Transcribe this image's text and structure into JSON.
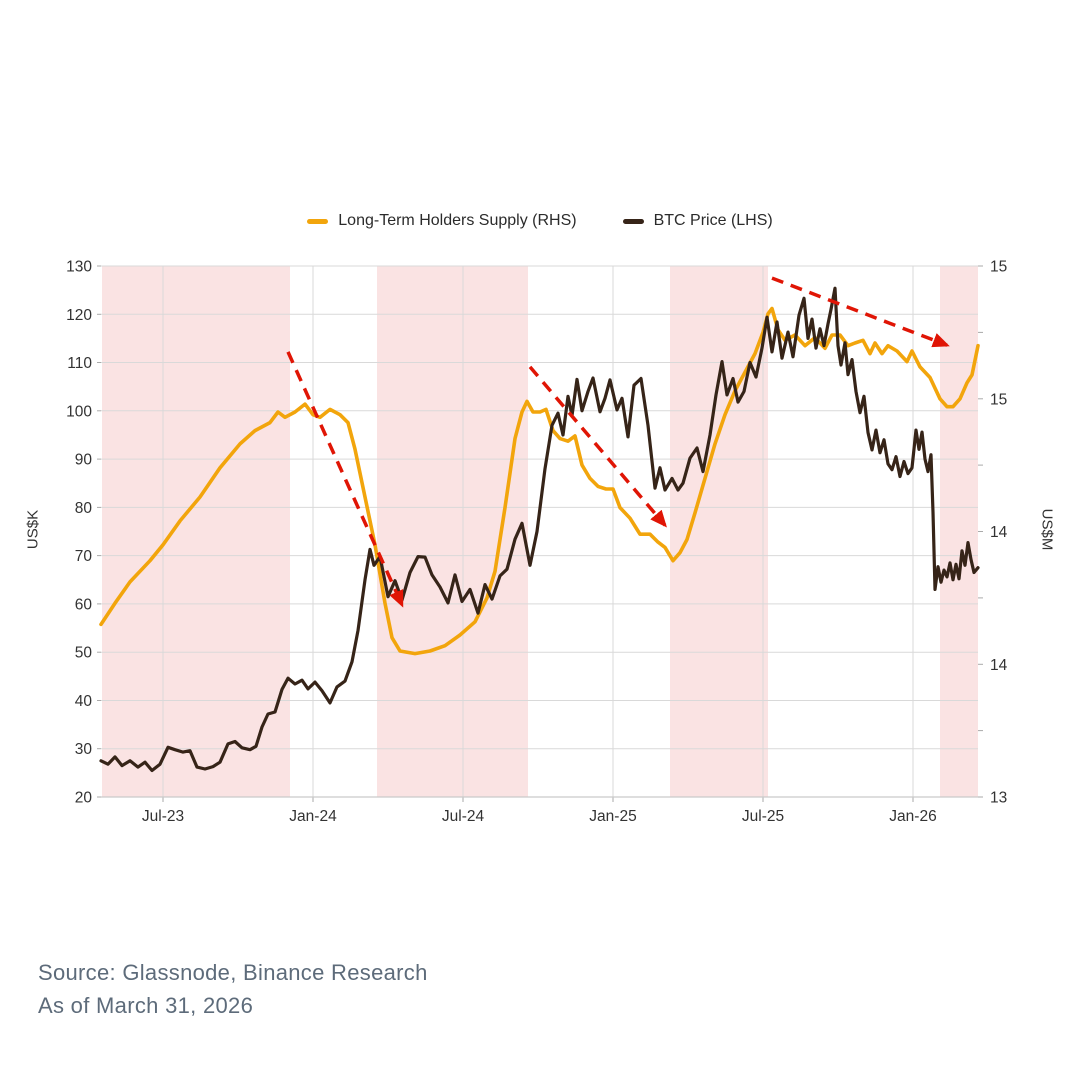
{
  "legend": {
    "items": [
      {
        "label": "Long-Term Holders Supply (RHS)",
        "color": "#F2A50C"
      },
      {
        "label": "BTC Price (LHS)",
        "color": "#362418"
      }
    ]
  },
  "axes": {
    "left": {
      "title": "US$K",
      "ticks": [
        130,
        120,
        110,
        100,
        90,
        80,
        70,
        60,
        50,
        40,
        30,
        20
      ]
    },
    "right": {
      "title": "US$M",
      "ticks": [
        {
          "value": 15.0,
          "label": "15"
        },
        {
          "value": 14.5,
          "label": "15"
        },
        {
          "value": 14.0,
          "label": "14"
        },
        {
          "value": 13.5,
          "label": "14"
        },
        {
          "value": 13.0,
          "label": "13"
        }
      ]
    },
    "x": {
      "ticks": [
        {
          "t": 6,
          "label": "Jul-23"
        },
        {
          "t": 12,
          "label": "Jan-24"
        },
        {
          "t": 18,
          "label": "Jul-24"
        },
        {
          "t": 24,
          "label": "Jan-25"
        },
        {
          "t": 30,
          "label": "Jul-25"
        },
        {
          "t": 36,
          "label": "Jan-26"
        }
      ]
    }
  },
  "source": {
    "line1": "Source: Glassnode, Binance Research",
    "line2": "As of March 31, 2026"
  },
  "chart_data": {
    "type": "line",
    "title": "",
    "x_unit": "months since Jan-2023 (6 = Jul-23, 12 = Jan-24, ...)",
    "x_range": [
      3.52,
      38.6
    ],
    "left_ylim": [
      20,
      130
    ],
    "right_ylim": [
      13,
      15
    ],
    "grid": true,
    "legend_position": "top-center",
    "band_color": "#FAE3E3",
    "grid_color": "#D9D9D9",
    "axis_color": "#C9C9C9",
    "tick_color": "#AAAAAA",
    "arrow_color": "#E01505",
    "shaded_regions": [
      [
        3.56,
        11.08
      ],
      [
        14.56,
        20.6
      ],
      [
        26.28,
        30.2
      ],
      [
        37.08,
        38.6
      ]
    ],
    "arrows": [
      {
        "from": [
          11.0,
          112.2
        ],
        "to": [
          15.56,
          59.8
        ],
        "y_axis": "left"
      },
      {
        "from": [
          20.68,
          109.1
        ],
        "to": [
          26.08,
          76.3
        ],
        "y_axis": "left"
      },
      {
        "from": [
          30.36,
          127.5
        ],
        "to": [
          37.36,
          113.6
        ],
        "y_axis": "left"
      }
    ],
    "series": [
      {
        "name": "Long-Term Holders Supply (RHS)",
        "id": "lth-supply-line",
        "axis": "right",
        "color": "#F2A50C",
        "stroke_width": 3.6,
        "points": [
          [
            3.52,
            13.65
          ],
          [
            4.08,
            13.73
          ],
          [
            4.68,
            13.81
          ],
          [
            5.48,
            13.89
          ],
          [
            6.0,
            13.95
          ],
          [
            6.68,
            14.04
          ],
          [
            7.48,
            14.13
          ],
          [
            8.28,
            14.24
          ],
          [
            9.08,
            14.33
          ],
          [
            9.68,
            14.38
          ],
          [
            10.28,
            14.41
          ],
          [
            10.6,
            14.45
          ],
          [
            10.88,
            14.43
          ],
          [
            11.28,
            14.45
          ],
          [
            11.68,
            14.48
          ],
          [
            12.0,
            14.44
          ],
          [
            12.28,
            14.43
          ],
          [
            12.68,
            14.46
          ],
          [
            13.08,
            14.44
          ],
          [
            13.4,
            14.41
          ],
          [
            13.68,
            14.31
          ],
          [
            14.08,
            14.13
          ],
          [
            14.48,
            13.95
          ],
          [
            14.88,
            13.73
          ],
          [
            15.16,
            13.6
          ],
          [
            15.48,
            13.55
          ],
          [
            16.08,
            13.54
          ],
          [
            16.68,
            13.55
          ],
          [
            17.28,
            13.57
          ],
          [
            17.88,
            13.61
          ],
          [
            18.48,
            13.66
          ],
          [
            18.96,
            13.75
          ],
          [
            19.28,
            13.85
          ],
          [
            19.68,
            14.09
          ],
          [
            20.08,
            14.35
          ],
          [
            20.36,
            14.45
          ],
          [
            20.56,
            14.49
          ],
          [
            20.8,
            14.45
          ],
          [
            21.08,
            14.45
          ],
          [
            21.32,
            14.46
          ],
          [
            21.6,
            14.38
          ],
          [
            21.88,
            14.35
          ],
          [
            22.2,
            14.34
          ],
          [
            22.48,
            14.36
          ],
          [
            22.76,
            14.25
          ],
          [
            23.08,
            14.2
          ],
          [
            23.4,
            14.17
          ],
          [
            23.72,
            14.16
          ],
          [
            24.0,
            14.16
          ],
          [
            24.28,
            14.09
          ],
          [
            24.68,
            14.05
          ],
          [
            25.08,
            13.99
          ],
          [
            25.48,
            13.99
          ],
          [
            25.8,
            13.96
          ],
          [
            26.08,
            13.94
          ],
          [
            26.4,
            13.89
          ],
          [
            26.68,
            13.92
          ],
          [
            26.96,
            13.97
          ],
          [
            27.28,
            14.07
          ],
          [
            27.68,
            14.2
          ],
          [
            28.08,
            14.33
          ],
          [
            28.48,
            14.44
          ],
          [
            28.88,
            14.53
          ],
          [
            29.28,
            14.6
          ],
          [
            29.68,
            14.67
          ],
          [
            30.0,
            14.75
          ],
          [
            30.2,
            14.82
          ],
          [
            30.36,
            14.84
          ],
          [
            30.6,
            14.76
          ],
          [
            30.88,
            14.72
          ],
          [
            31.28,
            14.74
          ],
          [
            31.68,
            14.7
          ],
          [
            32.08,
            14.73
          ],
          [
            32.48,
            14.69
          ],
          [
            32.76,
            14.74
          ],
          [
            33.08,
            14.74
          ],
          [
            33.4,
            14.7
          ],
          [
            33.68,
            14.71
          ],
          [
            34.0,
            14.72
          ],
          [
            34.28,
            14.67
          ],
          [
            34.48,
            14.71
          ],
          [
            34.76,
            14.67
          ],
          [
            35.0,
            14.7
          ],
          [
            35.36,
            14.68
          ],
          [
            35.76,
            14.64
          ],
          [
            35.96,
            14.68
          ],
          [
            36.28,
            14.62
          ],
          [
            36.68,
            14.58
          ],
          [
            37.08,
            14.5
          ],
          [
            37.36,
            14.47
          ],
          [
            37.6,
            14.47
          ],
          [
            37.88,
            14.5
          ],
          [
            38.16,
            14.56
          ],
          [
            38.36,
            14.59
          ],
          [
            38.6,
            14.7
          ]
        ]
      },
      {
        "name": "BTC Price (LHS)",
        "id": "btc-price-line",
        "axis": "left",
        "color": "#362418",
        "stroke_width": 3.2,
        "points": [
          [
            3.52,
            27.5
          ],
          [
            3.8,
            26.8
          ],
          [
            4.08,
            28.3
          ],
          [
            4.36,
            26.5
          ],
          [
            4.68,
            27.5
          ],
          [
            5.0,
            26.2
          ],
          [
            5.28,
            27.2
          ],
          [
            5.56,
            25.5
          ],
          [
            5.88,
            26.8
          ],
          [
            6.2,
            30.3
          ],
          [
            6.48,
            29.8
          ],
          [
            6.8,
            29.3
          ],
          [
            7.08,
            29.6
          ],
          [
            7.36,
            26.2
          ],
          [
            7.68,
            25.8
          ],
          [
            8.0,
            26.3
          ],
          [
            8.28,
            27.2
          ],
          [
            8.6,
            31.0
          ],
          [
            8.88,
            31.5
          ],
          [
            9.16,
            30.2
          ],
          [
            9.48,
            29.8
          ],
          [
            9.72,
            30.5
          ],
          [
            9.96,
            34.5
          ],
          [
            10.2,
            37.2
          ],
          [
            10.48,
            37.6
          ],
          [
            10.76,
            42.3
          ],
          [
            11.0,
            44.6
          ],
          [
            11.28,
            43.4
          ],
          [
            11.56,
            44.2
          ],
          [
            11.8,
            42.4
          ],
          [
            12.08,
            43.8
          ],
          [
            12.36,
            42.0
          ],
          [
            12.68,
            39.5
          ],
          [
            12.96,
            42.8
          ],
          [
            13.28,
            44.0
          ],
          [
            13.56,
            48.0
          ],
          [
            13.8,
            54.5
          ],
          [
            14.08,
            65.0
          ],
          [
            14.28,
            71.3
          ],
          [
            14.44,
            68.0
          ],
          [
            14.68,
            69.8
          ],
          [
            15.0,
            61.5
          ],
          [
            15.28,
            64.8
          ],
          [
            15.56,
            60.8
          ],
          [
            15.88,
            66.5
          ],
          [
            16.2,
            69.8
          ],
          [
            16.48,
            69.7
          ],
          [
            16.76,
            66.0
          ],
          [
            17.08,
            63.5
          ],
          [
            17.4,
            60.2
          ],
          [
            17.68,
            66.0
          ],
          [
            17.96,
            60.5
          ],
          [
            18.28,
            63.0
          ],
          [
            18.6,
            58.1
          ],
          [
            18.88,
            64.0
          ],
          [
            19.16,
            61.0
          ],
          [
            19.48,
            65.8
          ],
          [
            19.76,
            67.2
          ],
          [
            20.08,
            73.4
          ],
          [
            20.36,
            76.7
          ],
          [
            20.68,
            68.0
          ],
          [
            20.96,
            75.0
          ],
          [
            21.28,
            88.0
          ],
          [
            21.56,
            97.0
          ],
          [
            21.8,
            99.5
          ],
          [
            22.0,
            95.0
          ],
          [
            22.2,
            103.0
          ],
          [
            22.36,
            99.0
          ],
          [
            22.56,
            106.5
          ],
          [
            22.76,
            100.0
          ],
          [
            23.0,
            104.0
          ],
          [
            23.2,
            106.8
          ],
          [
            23.48,
            99.8
          ],
          [
            23.68,
            102.6
          ],
          [
            23.88,
            106.4
          ],
          [
            24.16,
            100.2
          ],
          [
            24.36,
            102.6
          ],
          [
            24.6,
            94.6
          ],
          [
            24.84,
            105.3
          ],
          [
            25.12,
            106.7
          ],
          [
            25.4,
            97.0
          ],
          [
            25.68,
            84.0
          ],
          [
            25.88,
            88.2
          ],
          [
            26.08,
            83.6
          ],
          [
            26.36,
            86.0
          ],
          [
            26.6,
            83.6
          ],
          [
            26.8,
            85.0
          ],
          [
            27.08,
            90.2
          ],
          [
            27.36,
            92.3
          ],
          [
            27.6,
            87.4
          ],
          [
            27.88,
            95.0
          ],
          [
            28.12,
            103.3
          ],
          [
            28.36,
            110.2
          ],
          [
            28.56,
            103.3
          ],
          [
            28.8,
            106.7
          ],
          [
            29.0,
            101.8
          ],
          [
            29.24,
            104.0
          ],
          [
            29.48,
            110.0
          ],
          [
            29.72,
            107.0
          ],
          [
            29.96,
            113.0
          ],
          [
            30.16,
            119.4
          ],
          [
            30.36,
            112.2
          ],
          [
            30.56,
            118.4
          ],
          [
            30.76,
            110.9
          ],
          [
            31.0,
            116.3
          ],
          [
            31.2,
            111.2
          ],
          [
            31.44,
            119.8
          ],
          [
            31.64,
            123.3
          ],
          [
            31.8,
            115.0
          ],
          [
            31.96,
            119.0
          ],
          [
            32.12,
            113.0
          ],
          [
            32.28,
            117.0
          ],
          [
            32.44,
            113.5
          ],
          [
            32.6,
            118.0
          ],
          [
            32.72,
            121.0
          ],
          [
            32.88,
            125.4
          ],
          [
            33.0,
            113.5
          ],
          [
            33.12,
            109.5
          ],
          [
            33.28,
            114.1
          ],
          [
            33.4,
            107.5
          ],
          [
            33.56,
            110.6
          ],
          [
            33.72,
            104.0
          ],
          [
            33.88,
            99.6
          ],
          [
            34.04,
            103.0
          ],
          [
            34.2,
            95.5
          ],
          [
            34.36,
            91.9
          ],
          [
            34.52,
            96.0
          ],
          [
            34.68,
            91.3
          ],
          [
            34.84,
            94.0
          ],
          [
            35.0,
            89.0
          ],
          [
            35.16,
            87.8
          ],
          [
            35.32,
            90.5
          ],
          [
            35.48,
            86.4
          ],
          [
            35.64,
            89.5
          ],
          [
            35.8,
            87.0
          ],
          [
            35.96,
            88.2
          ],
          [
            36.12,
            96.0
          ],
          [
            36.24,
            92.0
          ],
          [
            36.36,
            95.6
          ],
          [
            36.48,
            90.0
          ],
          [
            36.6,
            87.4
          ],
          [
            36.72,
            90.9
          ],
          [
            36.8,
            79.0
          ],
          [
            36.88,
            63.0
          ],
          [
            37.0,
            67.7
          ],
          [
            37.12,
            64.5
          ],
          [
            37.24,
            67.0
          ],
          [
            37.36,
            65.6
          ],
          [
            37.48,
            68.5
          ],
          [
            37.6,
            65.0
          ],
          [
            37.72,
            68.2
          ],
          [
            37.84,
            65.2
          ],
          [
            37.96,
            71.0
          ],
          [
            38.08,
            68.0
          ],
          [
            38.2,
            72.7
          ],
          [
            38.32,
            69.2
          ],
          [
            38.44,
            66.5
          ],
          [
            38.6,
            67.5
          ]
        ]
      }
    ]
  }
}
